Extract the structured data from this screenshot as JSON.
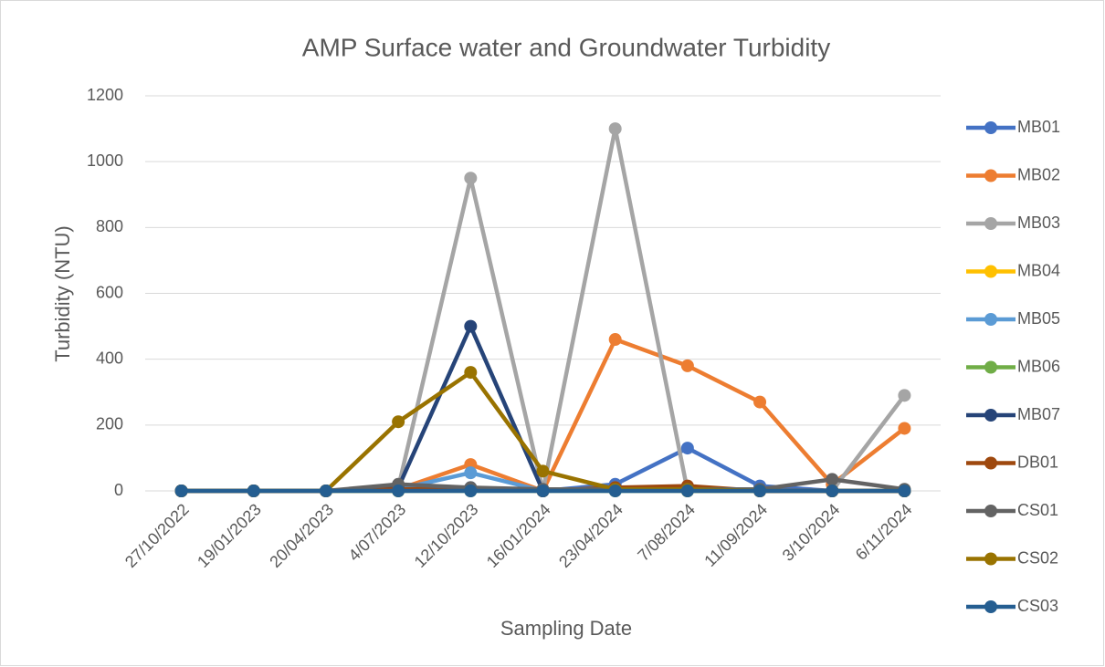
{
  "chart_data": {
    "type": "line",
    "title": "AMP Surface water and Groundwater Turbidity",
    "xlabel": "Sampling Date",
    "ylabel": "Turbidity (NTU)",
    "categories": [
      "27/10/2022",
      "19/01/2023",
      "20/04/2023",
      "4/07/2023",
      "12/10/2023",
      "16/01/2024",
      "23/04/2024",
      "7/08/2024",
      "11/09/2024",
      "3/10/2024",
      "6/11/2024"
    ],
    "series": [
      {
        "name": "MB01",
        "color": "#4472c4",
        "values": [
          0,
          0,
          0,
          5,
          10,
          0,
          20,
          130,
          15,
          0,
          0
        ]
      },
      {
        "name": "MB02",
        "color": "#ed7d31",
        "values": [
          0,
          0,
          0,
          5,
          80,
          0,
          460,
          380,
          270,
          20,
          190
        ]
      },
      {
        "name": "MB03",
        "color": "#a5a5a5",
        "values": [
          0,
          0,
          0,
          10,
          950,
          0,
          1100,
          0,
          0,
          0,
          290
        ]
      },
      {
        "name": "MB04",
        "color": "#ffc000",
        "values": [
          0,
          0,
          0,
          0,
          5,
          0,
          5,
          0,
          0,
          0,
          0
        ]
      },
      {
        "name": "MB05",
        "color": "#5b9bd5",
        "values": [
          0,
          0,
          0,
          5,
          55,
          0,
          10,
          5,
          0,
          0,
          0
        ]
      },
      {
        "name": "MB06",
        "color": "#70ad47",
        "values": [
          0,
          0,
          0,
          0,
          0,
          0,
          0,
          0,
          0,
          0,
          0
        ]
      },
      {
        "name": "MB07",
        "color": "#264478",
        "values": [
          0,
          0,
          0,
          10,
          500,
          0,
          5,
          5,
          0,
          0,
          0
        ]
      },
      {
        "name": "DB01",
        "color": "#9e480e",
        "values": [
          0,
          0,
          0,
          5,
          5,
          0,
          10,
          15,
          0,
          0,
          0
        ]
      },
      {
        "name": "CS01",
        "color": "#636363",
        "values": [
          0,
          0,
          0,
          20,
          10,
          5,
          5,
          5,
          5,
          35,
          5
        ]
      },
      {
        "name": "CS02",
        "color": "#997300",
        "values": [
          0,
          0,
          0,
          210,
          360,
          60,
          5,
          5,
          0,
          0,
          0
        ]
      },
      {
        "name": "CS03",
        "color": "#255e91",
        "values": [
          0,
          0,
          0,
          0,
          0,
          0,
          0,
          0,
          0,
          0,
          0
        ]
      }
    ],
    "ylim": [
      0,
      1200
    ],
    "yticks": [
      0,
      200,
      400,
      600,
      800,
      1000,
      1200
    ],
    "grid": true,
    "legend": "right"
  }
}
